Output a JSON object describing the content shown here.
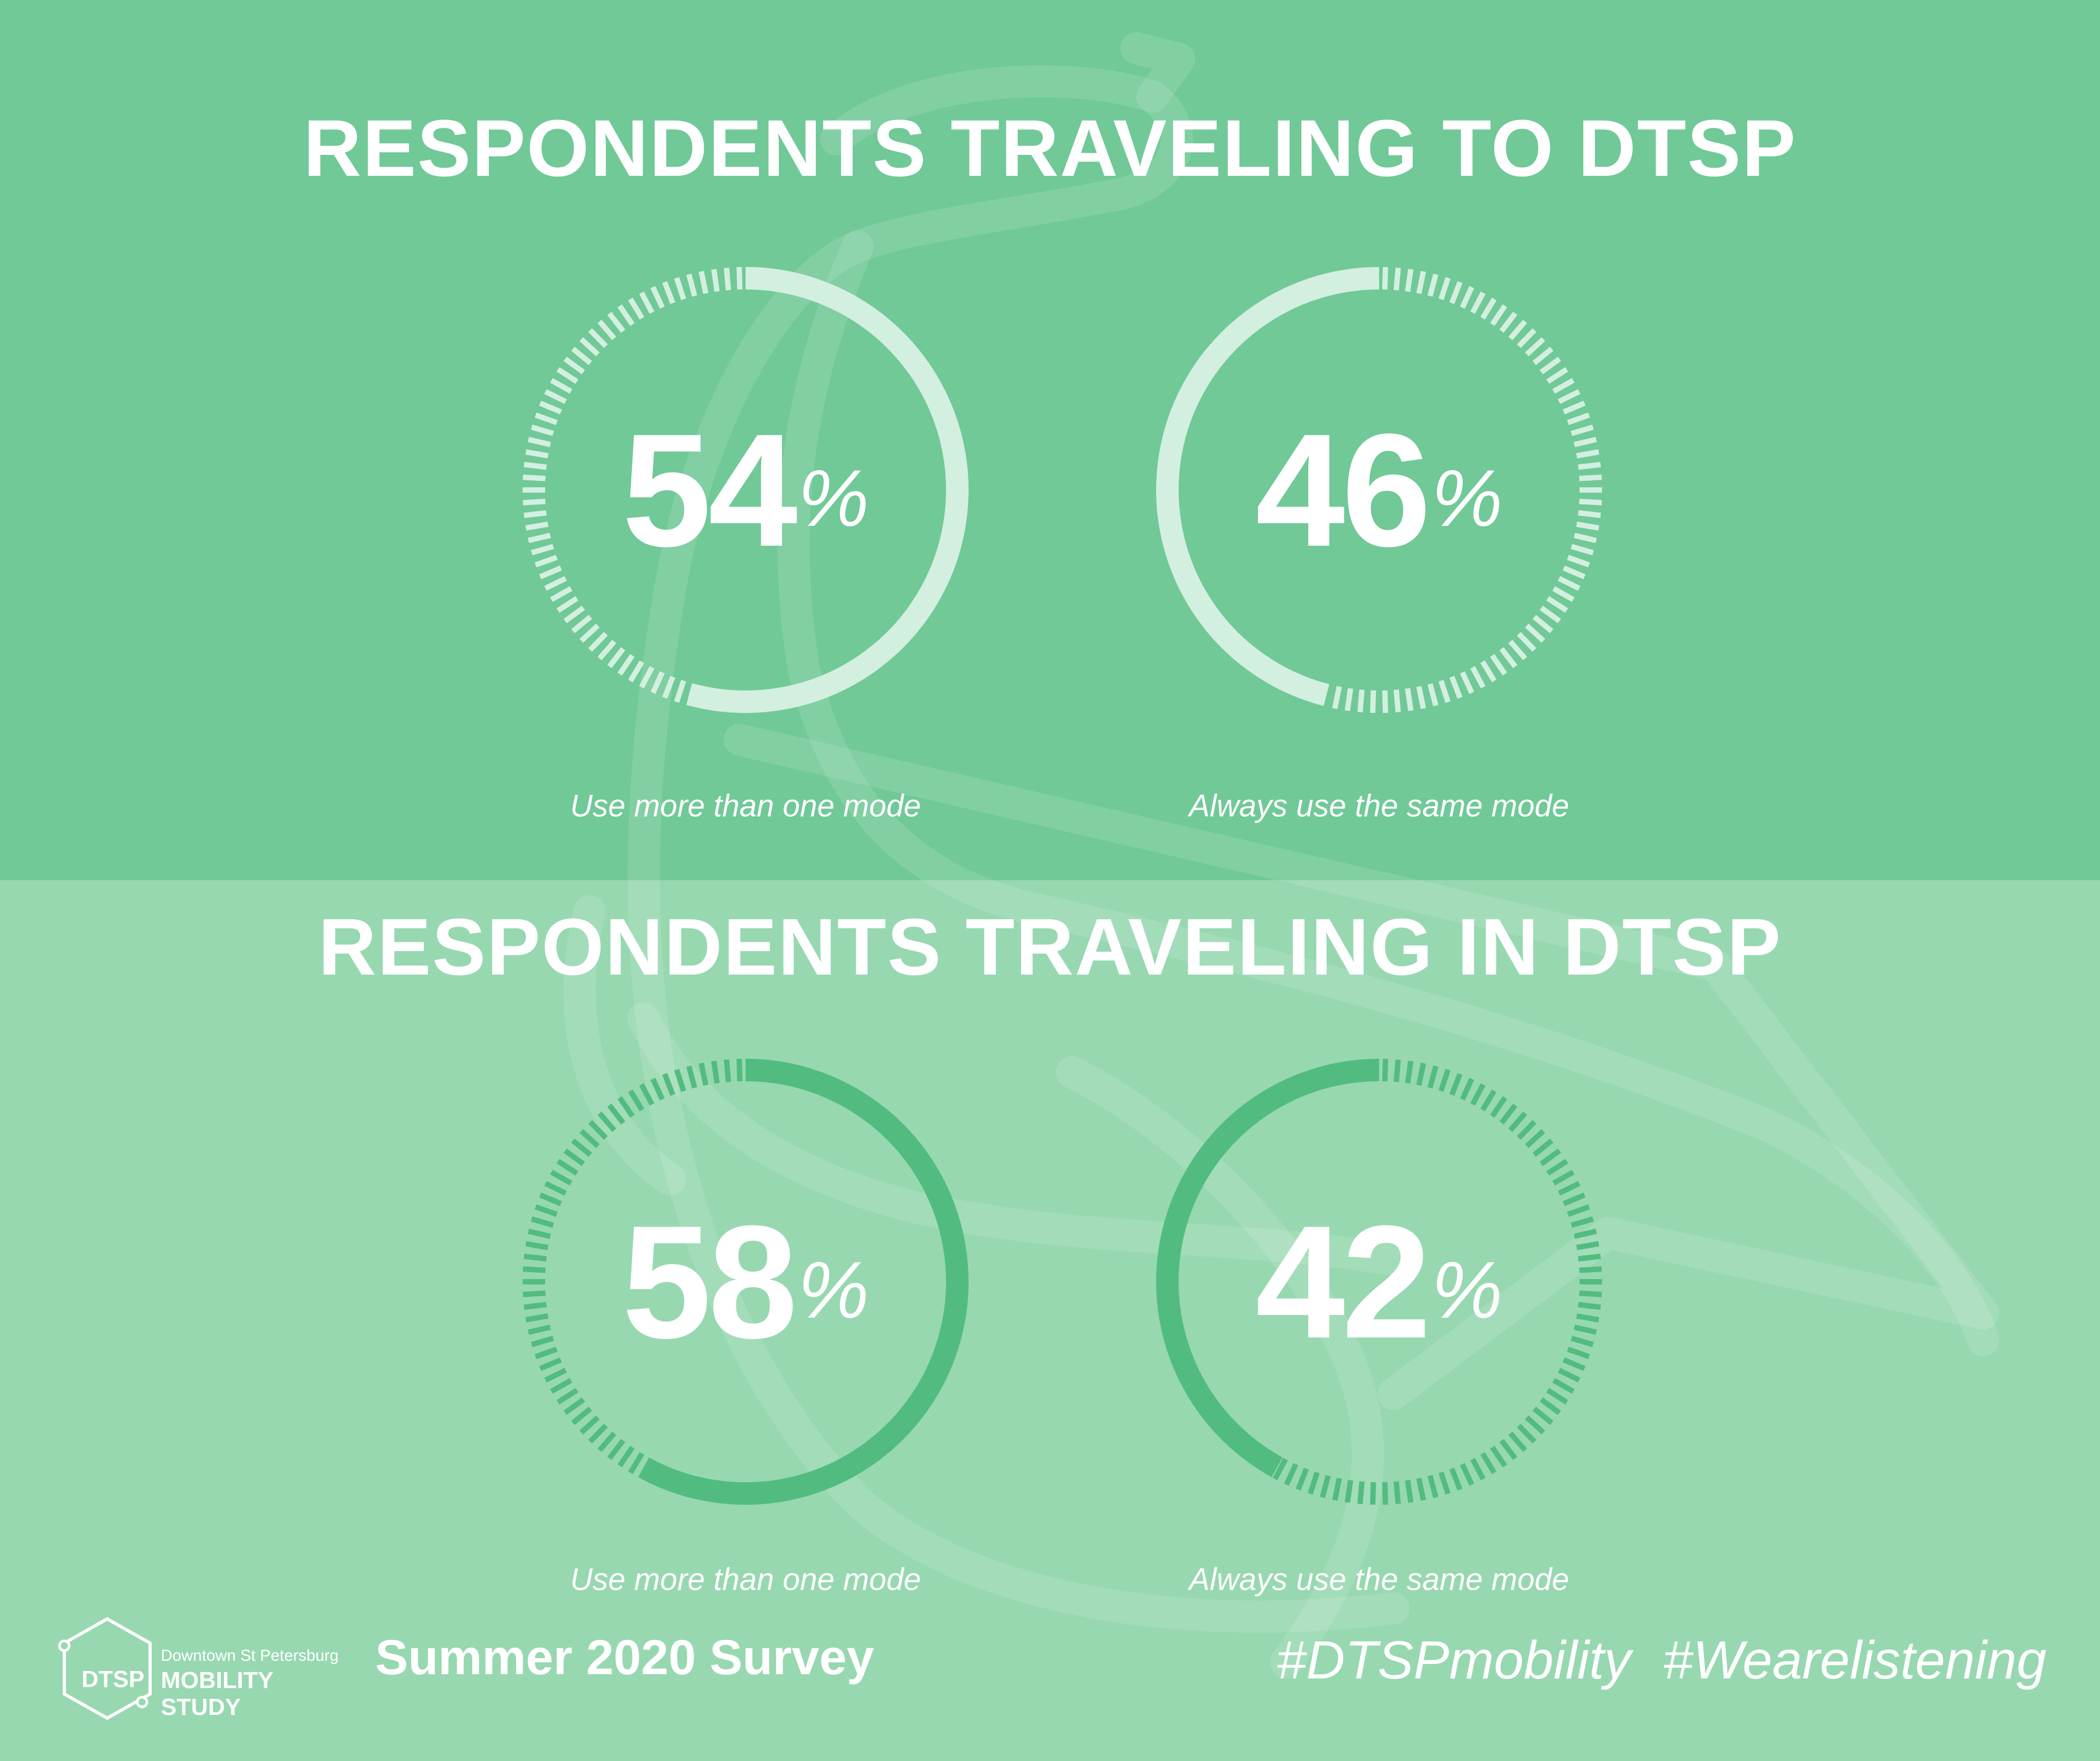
{
  "colors": {
    "top_background": "#70c997",
    "bottom_background": "#97d8b0",
    "top_arc": "#d3efe0",
    "bottom_arc": "#52bc80",
    "text": "#ffffff"
  },
  "chart_data": [
    {
      "type": "pie",
      "title": "RESPONDENTS TRAVELING TO DTSP",
      "series": [
        {
          "name": "Use more than one mode",
          "value": 54,
          "unit": "%"
        },
        {
          "name": "Always use the same mode",
          "value": 46,
          "unit": "%"
        }
      ]
    },
    {
      "type": "pie",
      "title": "RESPONDENTS TRAVELING IN DTSP",
      "series": [
        {
          "name": "Use more than one mode",
          "value": 58,
          "unit": "%"
        },
        {
          "name": "Always use the same mode",
          "value": 42,
          "unit": "%"
        }
      ]
    }
  ],
  "percent_symbol": "%",
  "footer": {
    "logo_mark": "DTSP",
    "logo_small": "Downtown St Petersburg",
    "logo_big": "MOBILITY STUDY",
    "survey": "Summer 2020 Survey",
    "hashtags": [
      "#DTSPmobility",
      "#Wearelistening"
    ]
  }
}
